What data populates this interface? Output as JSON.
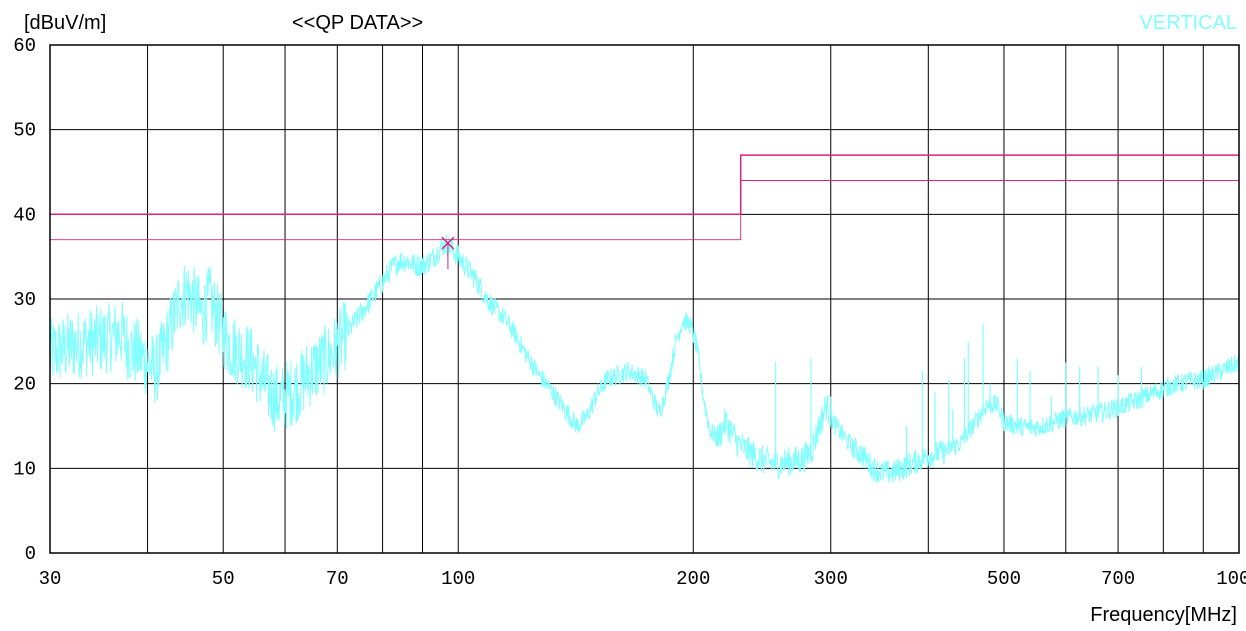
{
  "chart_data": {
    "type": "line",
    "title": "<<QP DATA>>",
    "ylabel": "[dBuV/m]",
    "xlabel": "Frequency[MHz]",
    "polarization": "VERTICAL",
    "x_scale": "log",
    "xlim": [
      30,
      1000
    ],
    "ylim": [
      0,
      60
    ],
    "x_ticks": [
      30,
      50,
      70,
      100,
      200,
      300,
      500,
      700,
      1000
    ],
    "x_gridlines": [
      30,
      40,
      50,
      60,
      70,
      80,
      90,
      100,
      200,
      300,
      400,
      500,
      600,
      700,
      800,
      900,
      1000
    ],
    "y_ticks": [
      0,
      10,
      20,
      30,
      40,
      50,
      60
    ],
    "grid": true,
    "colors": {
      "trace": "#80ffff",
      "limit": "#e0207a",
      "text": "#000000",
      "polarization": "#80ffff"
    },
    "limit_line": [
      {
        "x": 30,
        "y": 40
      },
      {
        "x": 230,
        "y": 40
      },
      {
        "x": 230,
        "y": 47
      },
      {
        "x": 1000,
        "y": 47
      }
    ],
    "margin_line": [
      {
        "x": 30,
        "y": 37
      },
      {
        "x": 230,
        "y": 37
      },
      {
        "x": 230,
        "y": 44
      },
      {
        "x": 1000,
        "y": 44
      }
    ],
    "marker": {
      "x": 97,
      "y": 36.6,
      "symbol": "x"
    },
    "series": [
      {
        "values": [
          [
            30,
            23.5
          ],
          [
            32,
            24.5
          ],
          [
            34,
            25
          ],
          [
            36,
            25.5
          ],
          [
            37,
            26
          ],
          [
            38,
            24
          ],
          [
            39,
            23.5
          ],
          [
            40,
            22.5
          ],
          [
            41,
            21.5
          ],
          [
            42,
            24
          ],
          [
            43,
            27
          ],
          [
            44,
            30
          ],
          [
            45,
            31
          ],
          [
            46,
            29.5
          ],
          [
            47,
            28
          ],
          [
            48,
            30
          ],
          [
            49,
            28
          ],
          [
            50,
            26
          ],
          [
            51,
            24.5
          ],
          [
            52,
            24
          ],
          [
            53,
            23.5
          ],
          [
            54,
            23
          ],
          [
            55,
            22
          ],
          [
            56,
            20.5
          ],
          [
            57,
            19.5
          ],
          [
            58,
            18.5
          ],
          [
            59,
            18
          ],
          [
            60,
            18.5
          ],
          [
            61,
            19
          ],
          [
            62,
            19.5
          ],
          [
            63,
            20
          ],
          [
            64,
            21
          ],
          [
            66,
            22
          ],
          [
            68,
            23
          ],
          [
            70,
            24.5
          ],
          [
            72,
            26
          ],
          [
            74,
            27.5
          ],
          [
            76,
            29
          ],
          [
            78,
            30.5
          ],
          [
            80,
            32
          ],
          [
            82,
            33.5
          ],
          [
            84,
            34.5
          ],
          [
            86,
            34.5
          ],
          [
            88,
            34
          ],
          [
            90,
            34
          ],
          [
            92,
            34.5
          ],
          [
            94,
            35.5
          ],
          [
            96,
            36.5
          ],
          [
            98,
            36
          ],
          [
            100,
            35
          ],
          [
            102,
            34
          ],
          [
            105,
            32.5
          ],
          [
            108,
            30.5
          ],
          [
            111,
            29
          ],
          [
            114,
            28
          ],
          [
            118,
            26
          ],
          [
            122,
            23.5
          ],
          [
            127,
            21
          ],
          [
            132,
            19
          ],
          [
            138,
            16.5
          ],
          [
            142,
            15
          ],
          [
            146,
            16
          ],
          [
            150,
            18.5
          ],
          [
            155,
            20.5
          ],
          [
            160,
            21
          ],
          [
            165,
            21.5
          ],
          [
            170,
            21
          ],
          [
            174,
            20.5
          ],
          [
            178,
            18
          ],
          [
            181,
            16.5
          ],
          [
            185,
            19.5
          ],
          [
            190,
            25
          ],
          [
            194,
            27.5
          ],
          [
            198,
            27
          ],
          [
            202,
            24.5
          ],
          [
            206,
            18.5
          ],
          [
            210,
            14.5
          ],
          [
            215,
            13.5
          ],
          [
            220,
            15.5
          ],
          [
            228,
            13
          ],
          [
            235,
            12
          ],
          [
            245,
            11
          ],
          [
            255,
            10.5
          ],
          [
            265,
            10.8
          ],
          [
            275,
            11
          ],
          [
            283,
            12
          ],
          [
            290,
            15
          ],
          [
            296,
            17.5
          ],
          [
            302,
            15.5
          ],
          [
            310,
            14
          ],
          [
            320,
            12.5
          ],
          [
            330,
            11.5
          ],
          [
            340,
            10
          ],
          [
            350,
            9.5
          ],
          [
            360,
            9.5
          ],
          [
            370,
            10
          ],
          [
            380,
            10.5
          ],
          [
            390,
            11
          ],
          [
            400,
            11.5
          ],
          [
            420,
            12
          ],
          [
            440,
            13
          ],
          [
            460,
            15.5
          ],
          [
            475,
            17.5
          ],
          [
            490,
            17.5
          ],
          [
            500,
            15.5
          ],
          [
            520,
            15
          ],
          [
            540,
            14.8
          ],
          [
            560,
            15
          ],
          [
            580,
            15.5
          ],
          [
            600,
            16
          ],
          [
            630,
            16.2
          ],
          [
            660,
            16.5
          ],
          [
            700,
            17.2
          ],
          [
            740,
            18
          ],
          [
            780,
            19
          ],
          [
            820,
            19.8
          ],
          [
            860,
            20.2
          ],
          [
            900,
            20.5
          ],
          [
            950,
            21.5
          ],
          [
            1000,
            22.5
          ]
        ],
        "spikes": [
          [
            255,
            22.5
          ],
          [
            283,
            23
          ],
          [
            300,
            18.5
          ],
          [
            375,
            15
          ],
          [
            393,
            21.5
          ],
          [
            408,
            19
          ],
          [
            425,
            20.5
          ],
          [
            430,
            17
          ],
          [
            445,
            23
          ],
          [
            450,
            25
          ],
          [
            470,
            27
          ],
          [
            480,
            20
          ],
          [
            520,
            23
          ],
          [
            540,
            21.5
          ],
          [
            575,
            18.5
          ],
          [
            600,
            22.5
          ],
          [
            625,
            22
          ],
          [
            660,
            22
          ],
          [
            700,
            21
          ],
          [
            750,
            22
          ]
        ]
      }
    ]
  }
}
